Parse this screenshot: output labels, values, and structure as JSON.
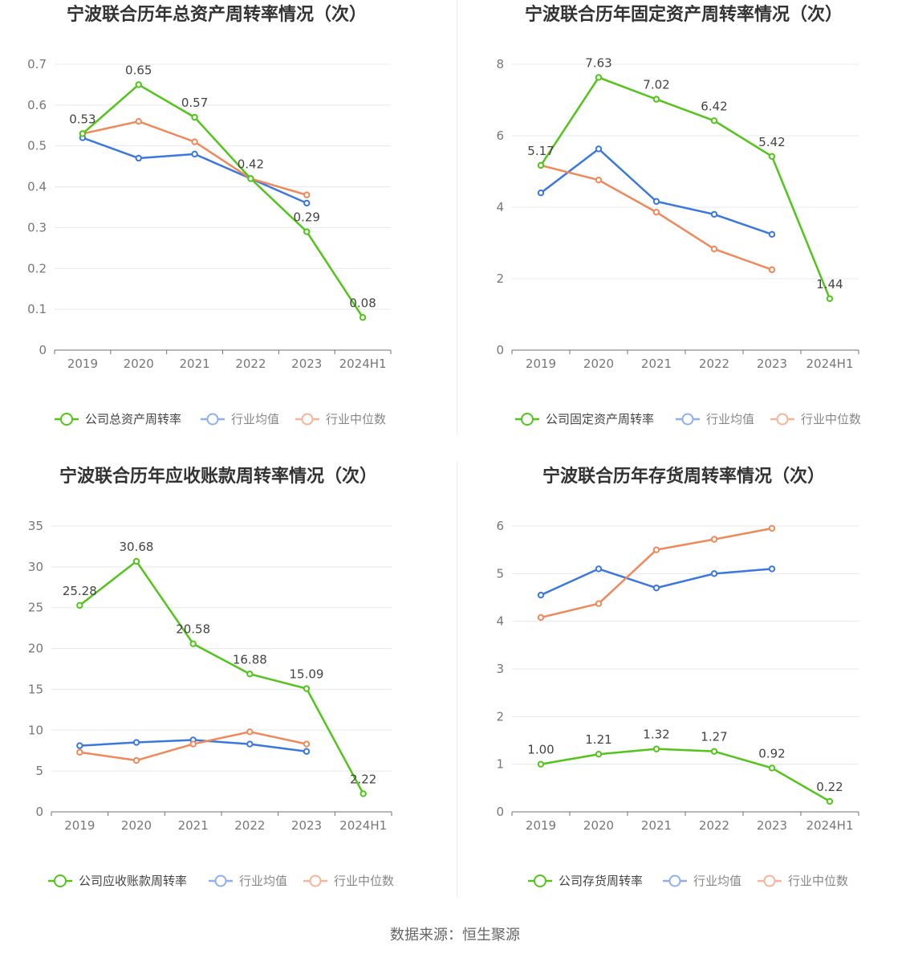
{
  "chart_data": [
    {
      "type": "line",
      "title": "宁波联合历年总资产周转率情况（次）",
      "categories": [
        "2019",
        "2020",
        "2021",
        "2022",
        "2023",
        "2024H1"
      ],
      "yticks": [
        "0",
        "0.1",
        "0.2",
        "0.3",
        "0.4",
        "0.5",
        "0.6",
        "0.7"
      ],
      "ylim": [
        0,
        0.7
      ],
      "series": [
        {
          "name": "公司总资产周转率",
          "color": "#52c41a",
          "values": [
            0.53,
            0.65,
            0.57,
            0.42,
            0.29,
            0.08
          ],
          "labels": [
            "0.53",
            "0.65",
            "0.57",
            "0.42",
            "0.29",
            "0.08"
          ]
        },
        {
          "name": "行业均值",
          "color": "#3a78e0",
          "values": [
            0.52,
            0.47,
            0.48,
            0.42,
            0.36,
            null
          ]
        },
        {
          "name": "行业中位数",
          "color": "#f0885a",
          "values": [
            0.53,
            0.56,
            0.51,
            0.42,
            0.38,
            null
          ]
        }
      ]
    },
    {
      "type": "line",
      "title": "宁波联合历年固定资产周转率情况（次）",
      "categories": [
        "2019",
        "2020",
        "2021",
        "2022",
        "2023",
        "2024H1"
      ],
      "yticks": [
        "0",
        "2",
        "4",
        "6",
        "8"
      ],
      "ylim": [
        0,
        8
      ],
      "series": [
        {
          "name": "公司固定资产周转率",
          "color": "#52c41a",
          "values": [
            5.17,
            7.63,
            7.02,
            6.42,
            5.42,
            1.44
          ],
          "labels": [
            "5.17",
            "7.63",
            "7.02",
            "6.42",
            "5.42",
            "1.44"
          ]
        },
        {
          "name": "行业均值",
          "color": "#3a78e0",
          "values": [
            4.4,
            5.63,
            4.16,
            3.8,
            3.24,
            null
          ]
        },
        {
          "name": "行业中位数",
          "color": "#f0885a",
          "values": [
            5.17,
            4.76,
            3.86,
            2.83,
            2.25,
            null
          ]
        }
      ]
    },
    {
      "type": "line",
      "title": "宁波联合历年应收账款周转率情况（次）",
      "categories": [
        "2019",
        "2020",
        "2021",
        "2022",
        "2023",
        "2024H1"
      ],
      "yticks": [
        "0",
        "5",
        "10",
        "15",
        "20",
        "25",
        "30",
        "35"
      ],
      "ylim": [
        0,
        35
      ],
      "series": [
        {
          "name": "公司应收账款周转率",
          "color": "#52c41a",
          "values": [
            25.28,
            30.68,
            20.58,
            16.88,
            15.09,
            2.22
          ],
          "labels": [
            "25.28",
            "30.68",
            "20.58",
            "16.88",
            "15.09",
            "2.22"
          ]
        },
        {
          "name": "行业均值",
          "color": "#3a78e0",
          "values": [
            8.1,
            8.5,
            8.8,
            8.3,
            7.4,
            null
          ]
        },
        {
          "name": "行业中位数",
          "color": "#f0885a",
          "values": [
            7.3,
            6.3,
            8.3,
            9.8,
            8.3,
            null
          ]
        }
      ]
    },
    {
      "type": "line",
      "title": "宁波联合历年存货周转率情况（次）",
      "categories": [
        "2019",
        "2020",
        "2021",
        "2022",
        "2023",
        "2024H1"
      ],
      "yticks": [
        "0",
        "1",
        "2",
        "3",
        "4",
        "5",
        "6"
      ],
      "ylim": [
        0,
        6
      ],
      "series": [
        {
          "name": "公司存货周转率",
          "color": "#52c41a",
          "values": [
            1.0,
            1.21,
            1.32,
            1.27,
            0.92,
            0.22
          ],
          "labels": [
            "1.00",
            "1.21",
            "1.32",
            "1.27",
            "0.92",
            "0.22"
          ]
        },
        {
          "name": "行业均值",
          "color": "#3a78e0",
          "values": [
            4.55,
            5.1,
            4.7,
            5.0,
            5.1,
            null
          ]
        },
        {
          "name": "行业中位数",
          "color": "#f0885a",
          "values": [
            4.08,
            4.37,
            5.5,
            5.72,
            5.95,
            null
          ]
        }
      ]
    }
  ],
  "footer": {
    "source": "数据来源：恒生聚源"
  }
}
